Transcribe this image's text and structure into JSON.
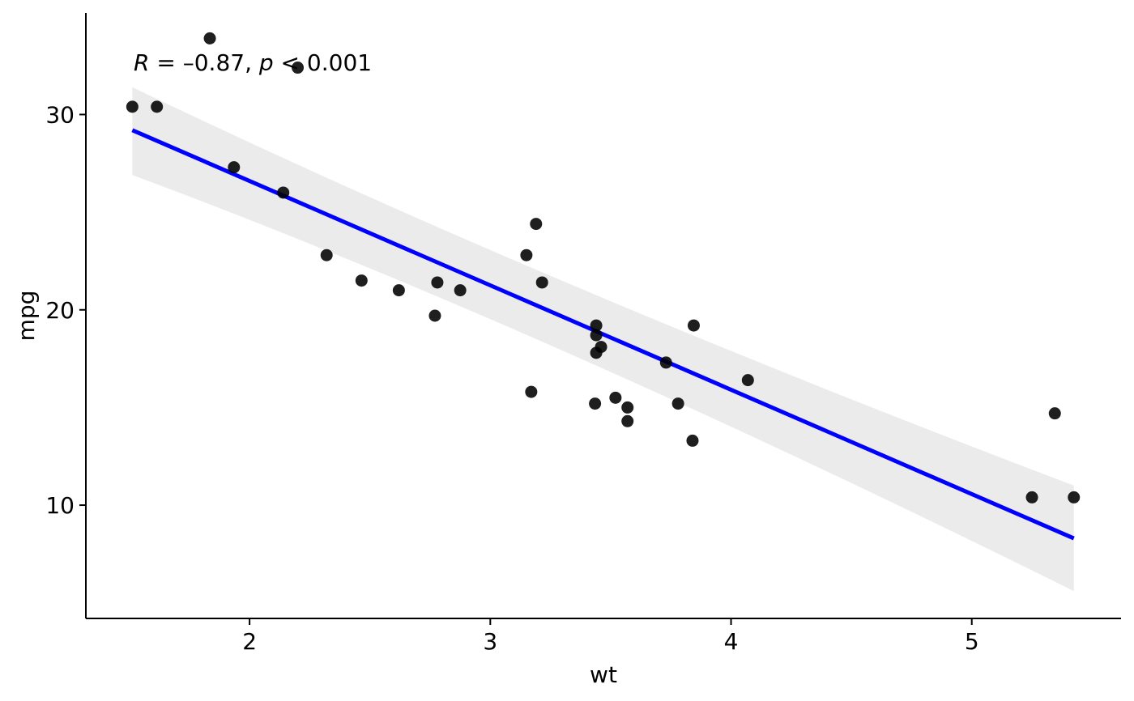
{
  "chart_data": {
    "type": "scatter",
    "xlabel": "wt",
    "ylabel": "mpg",
    "xlim": [
      1.32,
      5.62
    ],
    "ylim": [
      4.2,
      35.2
    ],
    "x_ticks": [
      2,
      3,
      4,
      5
    ],
    "y_ticks": [
      10,
      20,
      30
    ],
    "x_tick_labels": [
      "2",
      "3",
      "4",
      "5"
    ],
    "y_tick_labels": [
      "10",
      "20",
      "30"
    ],
    "grid": false,
    "annotation": {
      "r_symbol": "R",
      "r_text": " = –0.87, ",
      "p_symbol": "p",
      "p_text": " < 0.001"
    },
    "points": {
      "x": [
        2.62,
        2.875,
        2.32,
        3.215,
        3.44,
        3.46,
        3.57,
        3.19,
        3.15,
        3.44,
        3.44,
        4.07,
        3.73,
        3.78,
        5.25,
        5.424,
        5.345,
        2.2,
        1.615,
        1.835,
        2.465,
        3.52,
        3.435,
        3.84,
        3.845,
        1.935,
        2.14,
        1.513,
        3.17,
        2.77,
        3.57,
        2.78
      ],
      "y": [
        21.0,
        21.0,
        22.8,
        21.4,
        18.7,
        18.1,
        14.3,
        24.4,
        22.8,
        19.2,
        17.8,
        16.4,
        17.3,
        15.2,
        10.4,
        10.4,
        14.7,
        32.4,
        30.4,
        33.9,
        21.5,
        15.5,
        15.2,
        13.3,
        19.2,
        27.3,
        26.0,
        30.4,
        15.8,
        19.7,
        15.0,
        21.4
      ],
      "color": "#000000"
    },
    "regression": {
      "x_start": 1.513,
      "x_end": 5.424,
      "y_start": 29.2,
      "y_end": 8.3,
      "ci_lower_start": 26.9,
      "ci_upper_start": 31.4,
      "ci_lower_end": 5.6,
      "ci_upper_end": 11.0,
      "ci_mid_x": 3.2,
      "ci_lower_mid": 19.2,
      "ci_upper_mid": 21.4,
      "line_color": "#0000ff",
      "band_color": "#ebebeb"
    }
  }
}
